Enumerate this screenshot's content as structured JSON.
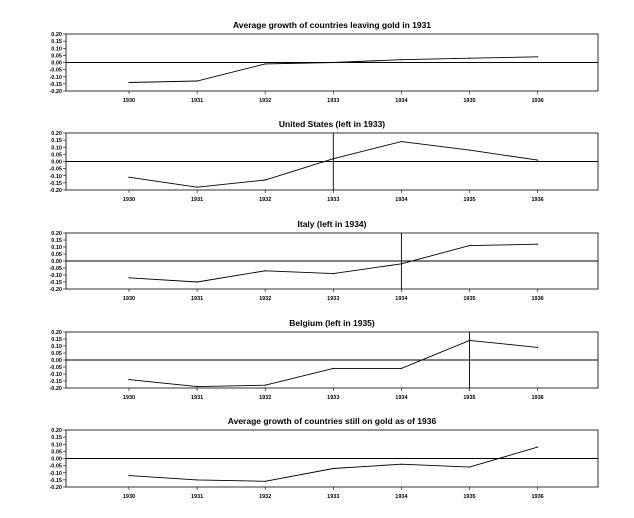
{
  "chart_data": [
    {
      "type": "line",
      "title": "Average growth of countries leaving gold in 1931",
      "x": [
        "1930",
        "1931",
        "1932",
        "1933",
        "1934",
        "1935",
        "1936"
      ],
      "series": [
        {
          "values": [
            -0.14,
            -0.13,
            -0.01,
            0.0,
            0.02,
            0.03,
            0.04
          ]
        }
      ],
      "ylim": [
        -0.2,
        0.2
      ],
      "yticks": [
        "0.20",
        "0.15",
        "0.10",
        "0.05",
        "0.00",
        "-0.05",
        "-0.10",
        "-0.15",
        "-0.20"
      ],
      "zero_line": true,
      "grid": false
    },
    {
      "type": "line",
      "title": "United States (left in 1933)",
      "x": [
        "1930",
        "1931",
        "1932",
        "1933",
        "1934",
        "1935",
        "1936"
      ],
      "series": [
        {
          "values": [
            -0.11,
            -0.18,
            -0.13,
            0.02,
            0.14,
            0.08,
            0.01
          ]
        }
      ],
      "ylim": [
        -0.2,
        0.2
      ],
      "yticks": [
        "0.20",
        "0.15",
        "0.10",
        "0.05",
        "0.00",
        "-0.05",
        "-0.10",
        "-0.15",
        "-0.20"
      ],
      "zero_line": true,
      "vline_at": "1933",
      "grid": false
    },
    {
      "type": "line",
      "title": "Italy (left in 1934)",
      "x": [
        "1930",
        "1931",
        "1932",
        "1933",
        "1934",
        "1935",
        "1936"
      ],
      "series": [
        {
          "values": [
            -0.12,
            -0.15,
            -0.07,
            -0.09,
            -0.02,
            0.11,
            0.12
          ]
        }
      ],
      "ylim": [
        -0.2,
        0.2
      ],
      "yticks": [
        "0.20",
        "0.15",
        "0.10",
        "0.05",
        "0.00",
        "-0.05",
        "-0.10",
        "-0.15",
        "-0.20"
      ],
      "zero_line": true,
      "vline_at": "1934",
      "grid": false
    },
    {
      "type": "line",
      "title": "Belgium (left in 1935)",
      "x": [
        "1930",
        "1931",
        "1932",
        "1933",
        "1934",
        "1935",
        "1936"
      ],
      "series": [
        {
          "values": [
            -0.14,
            -0.19,
            -0.18,
            -0.06,
            -0.06,
            0.14,
            0.09
          ]
        }
      ],
      "ylim": [
        -0.2,
        0.2
      ],
      "yticks": [
        "0.20",
        "0.15",
        "0.10",
        "0.05",
        "0.00",
        "-0.05",
        "-0.10",
        "-0.15",
        "-0.20"
      ],
      "zero_line": true,
      "vline_at": "1935",
      "grid": false
    },
    {
      "type": "line",
      "title": "Average growth of countries still on gold as of 1936",
      "x": [
        "1930",
        "1931",
        "1932",
        "1933",
        "1934",
        "1935",
        "1936"
      ],
      "series": [
        {
          "values": [
            -0.12,
            -0.15,
            -0.16,
            -0.07,
            -0.04,
            -0.06,
            0.08
          ]
        }
      ],
      "ylim": [
        -0.2,
        0.2
      ],
      "yticks": [
        "0.20",
        "0.15",
        "0.10",
        "0.05",
        "0.00",
        "-0.05",
        "-0.10",
        "-0.15",
        "-0.20"
      ],
      "zero_line": true,
      "grid": false
    }
  ]
}
